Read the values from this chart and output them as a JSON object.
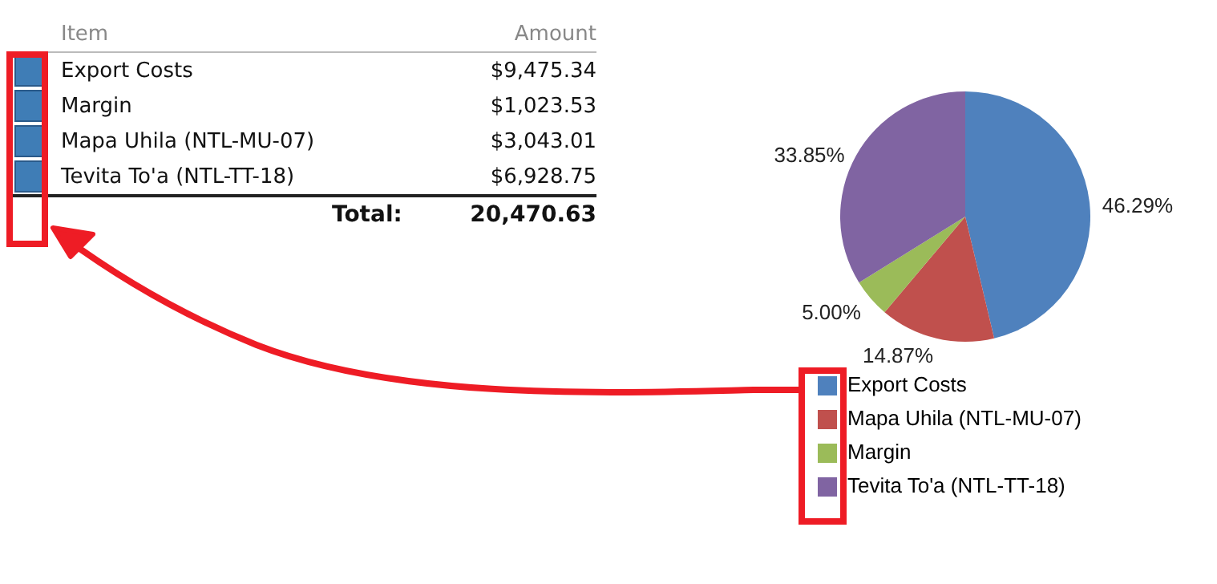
{
  "chart_data": [
    {
      "type": "other",
      "categories": [
        "Export Costs",
        "Margin",
        "Mapa Uhila (NTL-MU-07)",
        "Tevita To'a (NTL-TT-18)"
      ],
      "values": [
        9475.34,
        1023.53,
        3043.01,
        6928.75
      ],
      "value_labels": [
        "$9,475.34",
        "$1,023.53",
        "$3,043.01",
        "$6,928.75"
      ],
      "color": "#3f7db6",
      "annotations": [
        "Item",
        "Amount",
        "Total:",
        "20,470.63"
      ]
    },
    {
      "type": "pie",
      "categories": [
        "Export Costs",
        "Mapa Uhila (NTL-MU-07)",
        "Margin",
        "Tevita To'a (NTL-TT-18)"
      ],
      "values": [
        46.29,
        14.87,
        5.0,
        33.85
      ],
      "value_labels": [
        "46.29%",
        "14.87%",
        "5.00%",
        "33.85%"
      ],
      "colors": [
        "#4f81bd",
        "#c0504d",
        "#9bbb59",
        "#8064a2"
      ],
      "legend": "bottom"
    }
  ]
}
